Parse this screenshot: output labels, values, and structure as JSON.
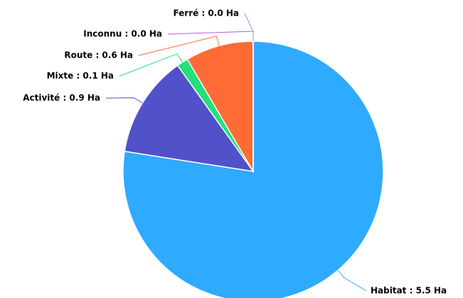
{
  "chart_data": {
    "type": "pie",
    "values": [
      5.5,
      0.9,
      0.1,
      0.6,
      0.0,
      0.0
    ],
    "value_labels": [
      "Habitat : 5.5 Ha",
      "Activité : 0.9 Ha",
      "Mixte : 0.1 Ha",
      "Route : 0.6 Ha",
      "Inconnu : 0.0 Ha",
      "Ferré : 0.0 Ha"
    ],
    "colors": [
      "#2eaaff",
      "#5151c9",
      "#22e07a",
      "#ff6b35",
      "#b55ee0",
      "#7d9fd6"
    ]
  }
}
